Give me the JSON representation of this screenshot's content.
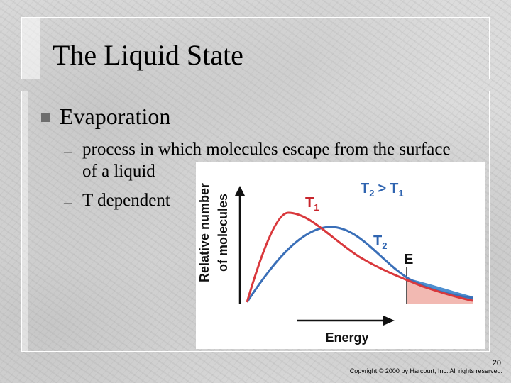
{
  "slide": {
    "title": "The Liquid State",
    "bullets": [
      {
        "text": "Evaporation",
        "sub": [
          {
            "line1": "process in which molecules escape from the surface",
            "line2": "of a liquid"
          },
          {
            "line1": "T dependent"
          }
        ]
      }
    ],
    "page_number": "20",
    "copyright": "Copyright © 2000 by Harcourt, Inc. All rights reserved."
  },
  "figure": {
    "ylabel_line1": "Relative number",
    "ylabel_line2": "of molecules",
    "xlabel": "Energy",
    "relation": "T2 > T1",
    "relation_parts": {
      "a": "T",
      "a_sub": "2",
      "op": ">",
      "b": "T",
      "b_sub": "1"
    },
    "curve_t1_label": {
      "main": "T",
      "sub": "1"
    },
    "curve_t2_label": {
      "main": "T",
      "sub": "2"
    },
    "threshold_label": "E",
    "colors": {
      "t1_curve": "#d9383c",
      "t2_curve": "#3a6fb8",
      "t1_fill": "#f2b9b2",
      "t2_fill": "#4e8fd0",
      "label_blue": "#2f64b0",
      "label_red": "#c8242b"
    }
  }
}
